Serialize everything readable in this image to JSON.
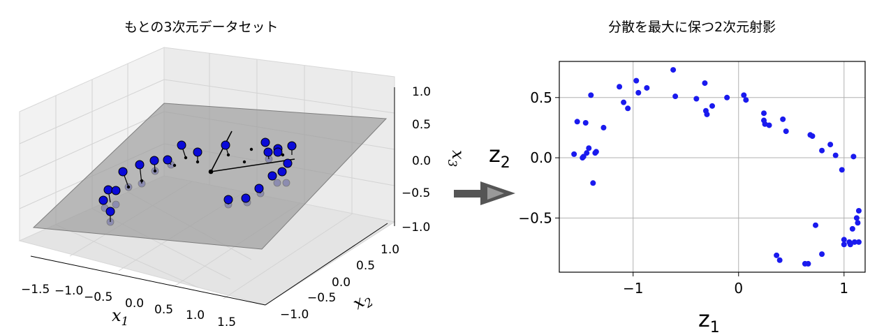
{
  "chart_data": [
    {
      "type": "scatter",
      "projection": "3d",
      "title": "もとの3次元データセット",
      "xlabel": "x1",
      "ylabel": "x2",
      "zlabel": "x3",
      "xlim": [
        -1.8,
        1.8
      ],
      "ylim": [
        -1.3,
        1.3
      ],
      "zlim": [
        -1.0,
        1.0
      ],
      "xticks": [
        "−1.5",
        "−1.0",
        "−0.5",
        "0.0",
        "0.5",
        "1.0",
        "1.5"
      ],
      "yticks": [
        "−1.0",
        "−0.5",
        "0.0",
        "0.5",
        "1.0"
      ],
      "zticks": [
        "−1.0",
        "−0.5",
        "0.0",
        "0.5",
        "1.0"
      ],
      "grid": true,
      "plane": "gray projection plane",
      "point_color": "#0000ff",
      "plane_color": "#b0b0b0"
    },
    {
      "type": "scatter",
      "title": "分散を最大に保つ2次元射影",
      "xlabel": "z1",
      "ylabel": "z2",
      "xlim": [
        -1.7,
        1.2
      ],
      "ylim": [
        -0.95,
        0.8
      ],
      "xticks": [
        -1,
        0,
        1
      ],
      "yticks": [
        -0.5,
        0.0,
        0.5
      ],
      "xtick_labels": [
        "−1",
        "0",
        "1"
      ],
      "ytick_labels": [
        "−0.5",
        "0.0",
        "0.5"
      ],
      "grid": true,
      "color": "#1a1aee",
      "x": [
        -1.56,
        -1.53,
        -1.48,
        -1.47,
        -1.45,
        -1.44,
        -1.42,
        -1.4,
        -1.38,
        -1.36,
        -1.35,
        -1.28,
        -1.13,
        -1.09,
        -1.05,
        -0.97,
        -0.95,
        -0.87,
        -0.62,
        -0.6,
        -0.4,
        -0.32,
        -0.31,
        -0.3,
        -0.25,
        -0.11,
        0.05,
        0.07,
        0.24,
        0.24,
        0.25,
        0.29,
        0.36,
        0.39,
        0.42,
        0.45,
        0.63,
        0.66,
        0.68,
        0.7,
        0.73,
        0.79,
        0.79,
        0.87,
        0.92,
        0.98,
        1.0,
        1.0,
        1.05,
        1.06,
        1.08,
        1.09,
        1.1,
        1.12,
        1.13,
        1.14,
        1.14
      ],
      "y": [
        0.03,
        0.3,
        0.0,
        0.01,
        0.29,
        0.04,
        0.08,
        0.52,
        -0.21,
        0.04,
        0.05,
        0.25,
        0.59,
        0.46,
        0.41,
        0.64,
        0.54,
        0.58,
        0.73,
        0.51,
        0.49,
        0.62,
        0.39,
        0.36,
        0.43,
        0.5,
        0.52,
        0.48,
        0.37,
        0.31,
        0.28,
        0.27,
        -0.81,
        -0.85,
        0.32,
        0.22,
        -0.88,
        -0.88,
        0.19,
        0.18,
        -0.56,
        0.06,
        -0.8,
        0.11,
        0.02,
        -0.1,
        -0.72,
        -0.68,
        -0.7,
        -0.72,
        -0.59,
        0.01,
        -0.7,
        -0.5,
        -0.54,
        -0.7,
        -0.44
      ]
    }
  ]
}
